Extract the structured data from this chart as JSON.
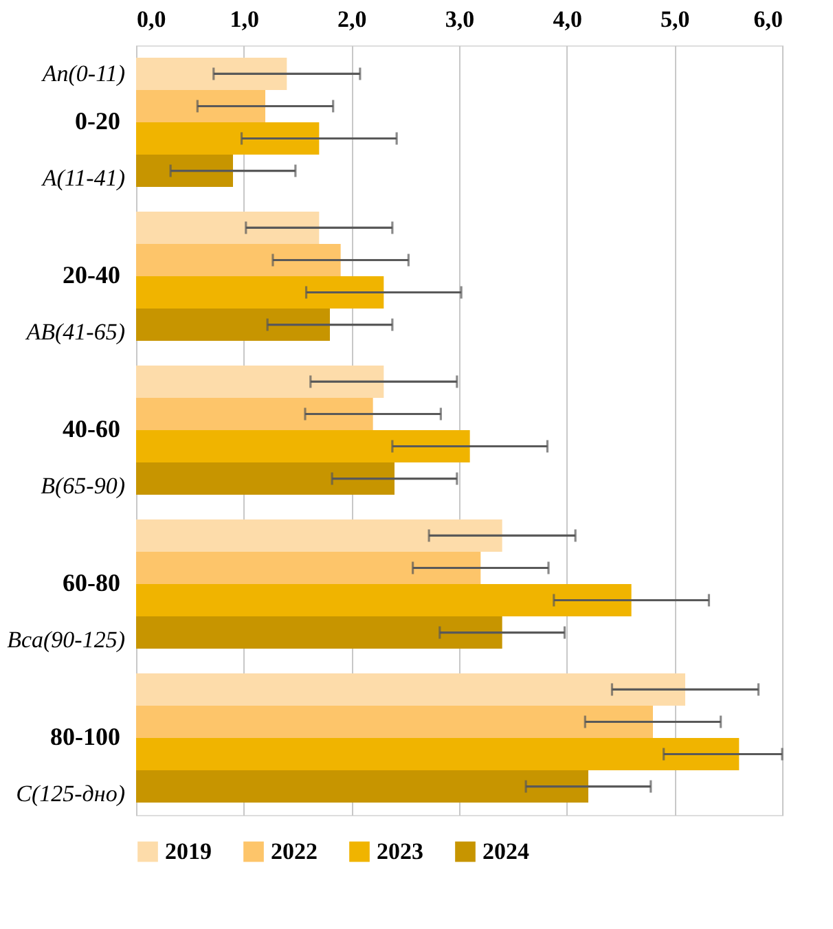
{
  "chart_data": {
    "type": "bar",
    "orientation": "horizontal",
    "categories": [
      "0-20",
      "20-40",
      "40-60",
      "60-80",
      "80-100"
    ],
    "series": [
      {
        "name": "2019",
        "color": "#fddcaa",
        "values": [
          1.4,
          1.7,
          2.3,
          3.4,
          5.1
        ],
        "errors": [
          0.68,
          0.68,
          0.68,
          0.68,
          0.68
        ]
      },
      {
        "name": "2022",
        "color": "#fdc56a",
        "values": [
          1.2,
          1.9,
          2.2,
          3.2,
          4.8
        ],
        "errors": [
          0.63,
          0.63,
          0.63,
          0.63,
          0.63
        ]
      },
      {
        "name": "2023",
        "color": "#f0b400",
        "values": [
          1.7,
          2.3,
          3.1,
          4.6,
          5.6
        ],
        "errors": [
          0.72,
          0.72,
          0.72,
          0.72,
          [
            4.9,
            6.0
          ]
        ]
      },
      {
        "name": "2024",
        "color": "#c79500",
        "values": [
          0.9,
          1.8,
          2.4,
          3.4,
          4.2
        ],
        "errors": [
          0.58,
          0.58,
          0.58,
          0.58,
          0.58
        ]
      }
    ],
    "xlim": [
      0,
      6
    ],
    "xticks": [
      {
        "value": 0,
        "label": "0,0"
      },
      {
        "value": 1,
        "label": "1,0"
      },
      {
        "value": 2,
        "label": "2,0"
      },
      {
        "value": 3,
        "label": "3,0"
      },
      {
        "value": 4,
        "label": "4,0"
      },
      {
        "value": 5,
        "label": "5,0"
      },
      {
        "value": 6,
        "label": "6,0"
      }
    ],
    "grid": "x",
    "legend": "bottom",
    "annotations": [
      "An(0-11)",
      "A(11-41)",
      "AB(41-65)",
      "B(65-90)",
      "Bca(90-125)",
      "C(125-дно)"
    ]
  }
}
